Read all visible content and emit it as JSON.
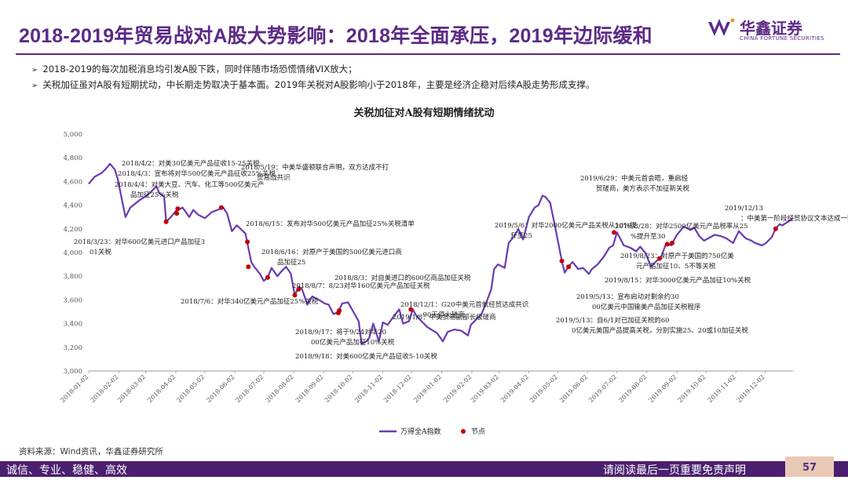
{
  "header": {
    "title": "2018-2019年贸易战对A股大势影响：2018年全面承压，2019年边际缓和",
    "logo_cn": "华鑫证券",
    "logo_en": "CHINA FORTUNE SECURITIES",
    "brand_color": "#5b2a86"
  },
  "bullets": [
    "2018-2019的每次加税消息均引发A股下跌，同时伴随市场恐慌情绪VIX放大；",
    "关税加征虽对A股有短期扰动，中长期走势取决于基本面。2019年关税对A股影响小于2018年，主要是经济企稳对后续A股走势形成支撑。"
  ],
  "chart_data": {
    "type": "line",
    "title": "关税加征对A股有短期情绪扰动",
    "ylim": [
      3000,
      5000
    ],
    "yticks": [
      "3,000",
      "3,200",
      "3,400",
      "3,600",
      "3,800",
      "4,000",
      "4,200",
      "4,400",
      "4,600",
      "4,800",
      "5,000"
    ],
    "xticks": [
      "2018-01-02",
      "2018-02-02",
      "2018-03-02",
      "2018-04-02",
      "2018-05-02",
      "2018-06-02",
      "2018-07-02",
      "2018-08-02",
      "2018-09-02",
      "2018-10-02",
      "2018-11-02",
      "2018-12-02",
      "2019-01-02",
      "2019-02-02",
      "2019-03-02",
      "2019-04-02",
      "2019-05-02",
      "2019-06-02",
      "2019-07-02",
      "2019-08-02",
      "2019-09-02",
      "2019-10-02",
      "2019-11-02",
      "2019-12-02"
    ],
    "series": [
      {
        "name": "万得全A指数",
        "color": "#6a3ab2",
        "points": [
          [
            "2018-01-02",
            4580
          ],
          [
            "2018-01-08",
            4640
          ],
          [
            "2018-01-15",
            4670
          ],
          [
            "2018-01-19",
            4700
          ],
          [
            "2018-01-24",
            4750
          ],
          [
            "2018-01-29",
            4700
          ],
          [
            "2018-02-01",
            4620
          ],
          [
            "2018-02-06",
            4420
          ],
          [
            "2018-02-09",
            4300
          ],
          [
            "2018-02-14",
            4380
          ],
          [
            "2018-02-23",
            4440
          ],
          [
            "2018-03-01",
            4470
          ],
          [
            "2018-03-07",
            4510
          ],
          [
            "2018-03-13",
            4560
          ],
          [
            "2018-03-16",
            4500
          ],
          [
            "2018-03-21",
            4470
          ],
          [
            "2018-03-23",
            4260
          ],
          [
            "2018-03-28",
            4300
          ],
          [
            "2018-04-02",
            4350
          ],
          [
            "2018-04-09",
            4380
          ],
          [
            "2018-04-16",
            4300
          ],
          [
            "2018-04-20",
            4360
          ],
          [
            "2018-04-25",
            4320
          ],
          [
            "2018-05-02",
            4290
          ],
          [
            "2018-05-09",
            4340
          ],
          [
            "2018-05-15",
            4360
          ],
          [
            "2018-05-21",
            4380
          ],
          [
            "2018-05-25",
            4330
          ],
          [
            "2018-05-30",
            4180
          ],
          [
            "2018-06-04",
            4230
          ],
          [
            "2018-06-08",
            4200
          ],
          [
            "2018-06-13",
            4160
          ],
          [
            "2018-06-19",
            3920
          ],
          [
            "2018-06-22",
            3880
          ],
          [
            "2018-06-28",
            3820
          ],
          [
            "2018-07-02",
            3760
          ],
          [
            "2018-07-06",
            3790
          ],
          [
            "2018-07-10",
            3870
          ],
          [
            "2018-07-16",
            3800
          ],
          [
            "2018-07-20",
            3840
          ],
          [
            "2018-07-25",
            3880
          ],
          [
            "2018-07-30",
            3820
          ],
          [
            "2018-08-03",
            3640
          ],
          [
            "2018-08-07",
            3710
          ],
          [
            "2018-08-10",
            3700
          ],
          [
            "2018-08-16",
            3560
          ],
          [
            "2018-08-21",
            3630
          ],
          [
            "2018-08-28",
            3600
          ],
          [
            "2018-09-03",
            3570
          ],
          [
            "2018-09-07",
            3560
          ],
          [
            "2018-09-12",
            3480
          ],
          [
            "2018-09-17",
            3500
          ],
          [
            "2018-09-21",
            3570
          ],
          [
            "2018-09-27",
            3580
          ],
          [
            "2018-10-08",
            3420
          ],
          [
            "2018-10-11",
            3230
          ],
          [
            "2018-10-16",
            3250
          ],
          [
            "2018-10-19",
            3280
          ],
          [
            "2018-10-23",
            3400
          ],
          [
            "2018-10-29",
            3250
          ],
          [
            "2018-11-02",
            3410
          ],
          [
            "2018-11-07",
            3390
          ],
          [
            "2018-11-14",
            3470
          ],
          [
            "2018-11-19",
            3520
          ],
          [
            "2018-11-23",
            3400
          ],
          [
            "2018-11-29",
            3420
          ],
          [
            "2018-12-03",
            3520
          ],
          [
            "2018-12-07",
            3460
          ],
          [
            "2018-12-12",
            3420
          ],
          [
            "2018-12-18",
            3370
          ],
          [
            "2018-12-24",
            3340
          ],
          [
            "2018-12-28",
            3320
          ],
          [
            "2019-01-03",
            3250
          ],
          [
            "2019-01-08",
            3330
          ],
          [
            "2019-01-15",
            3350
          ],
          [
            "2019-01-22",
            3340
          ],
          [
            "2019-01-29",
            3300
          ],
          [
            "2019-02-01",
            3390
          ],
          [
            "2019-02-12",
            3480
          ],
          [
            "2019-02-18",
            3600
          ],
          [
            "2019-02-22",
            3690
          ],
          [
            "2019-02-25",
            3860
          ],
          [
            "2019-03-01",
            3900
          ],
          [
            "2019-03-08",
            3870
          ],
          [
            "2019-03-12",
            4080
          ],
          [
            "2019-03-18",
            4140
          ],
          [
            "2019-03-22",
            4200
          ],
          [
            "2019-03-27",
            4110
          ],
          [
            "2019-04-02",
            4300
          ],
          [
            "2019-04-08",
            4380
          ],
          [
            "2019-04-12",
            4400
          ],
          [
            "2019-04-16",
            4480
          ],
          [
            "2019-04-19",
            4470
          ],
          [
            "2019-04-24",
            4420
          ],
          [
            "2019-04-29",
            4220
          ],
          [
            "2019-05-06",
            3930
          ],
          [
            "2019-05-09",
            3830
          ],
          [
            "2019-05-13",
            3880
          ],
          [
            "2019-05-17",
            3920
          ],
          [
            "2019-05-23",
            3860
          ],
          [
            "2019-05-28",
            3870
          ],
          [
            "2019-06-03",
            3820
          ],
          [
            "2019-06-06",
            3860
          ],
          [
            "2019-06-12",
            3900
          ],
          [
            "2019-06-18",
            3960
          ],
          [
            "2019-06-24",
            4040
          ],
          [
            "2019-06-28",
            4060
          ],
          [
            "2019-07-02",
            4170
          ],
          [
            "2019-07-09",
            4060
          ],
          [
            "2019-07-16",
            4040
          ],
          [
            "2019-07-22",
            4010
          ],
          [
            "2019-07-26",
            4050
          ],
          [
            "2019-08-01",
            3990
          ],
          [
            "2019-08-06",
            3880
          ],
          [
            "2019-08-12",
            3930
          ],
          [
            "2019-08-16",
            3950
          ],
          [
            "2019-08-22",
            4080
          ],
          [
            "2019-08-27",
            4060
          ],
          [
            "2019-09-02",
            4150
          ],
          [
            "2019-09-09",
            4220
          ],
          [
            "2019-09-16",
            4190
          ],
          [
            "2019-09-20",
            4210
          ],
          [
            "2019-09-25",
            4140
          ],
          [
            "2019-09-30",
            4100
          ],
          [
            "2019-10-11",
            4150
          ],
          [
            "2019-10-17",
            4140
          ],
          [
            "2019-10-23",
            4120
          ],
          [
            "2019-10-30",
            4080
          ],
          [
            "2019-11-05",
            4180
          ],
          [
            "2019-11-12",
            4120
          ],
          [
            "2019-11-18",
            4100
          ],
          [
            "2019-11-22",
            4080
          ],
          [
            "2019-11-29",
            4060
          ],
          [
            "2019-12-03",
            4080
          ],
          [
            "2019-12-09",
            4130
          ],
          [
            "2019-12-13",
            4200
          ],
          [
            "2019-12-17",
            4240
          ],
          [
            "2019-12-20",
            4230
          ],
          [
            "2019-12-26",
            4260
          ],
          [
            "2019-12-31",
            4290
          ]
        ]
      },
      {
        "name": "节点",
        "color": "#c00000",
        "points": [
          [
            "2018-03-23",
            4260
          ],
          [
            "2018-04-03",
            4330
          ],
          [
            "2018-04-04",
            4370
          ],
          [
            "2018-05-19",
            4380
          ],
          [
            "2018-06-15",
            4090
          ],
          [
            "2018-06-16",
            3880
          ],
          [
            "2018-07-06",
            3790
          ],
          [
            "2018-08-03",
            3640
          ],
          [
            "2018-08-07",
            3690
          ],
          [
            "2018-09-17",
            3490
          ],
          [
            "2018-09-18",
            3510
          ],
          [
            "2018-12-01",
            3520
          ],
          [
            "2019-05-06",
            3930
          ],
          [
            "2019-05-13",
            3880
          ],
          [
            "2019-06-29",
            4170
          ],
          [
            "2019-08-15",
            3950
          ],
          [
            "2019-08-23",
            4070
          ],
          [
            "2019-08-28",
            4080
          ],
          [
            "2019-12-13",
            4200
          ]
        ]
      }
    ],
    "annotations": [
      "2018/4/2：对美30亿美元产品征收15-25关税",
      "2018/4/3：宣布将对华500亿美元产品征收25%关税",
      "2018/4/4：对美大豆、汽车、化工等500亿美元产品加征25%关税",
      "2018/3/23：对华600亿美元进口产品加征301关税",
      "2018/5/19：中美华盛顿联合声明，双方达成不打贸易战共识",
      "2018/6/15：发布对华500亿美元产品加征25%关税清单",
      "2018/6/16：对原产于美国的500亿美元进口商品加征25",
      "2018/7/6：对华340亿美元产品加征25%关税",
      "2018/8/3：对自美进口的600亿商品加征关税",
      "2018/8/7：8/23对华160亿美元产品加征关税",
      "2018/9/17：将于9/24对华2000亿美元产品加征10%关税",
      "2018/9/18：对美600亿美元产品征收5-10关税",
      "2018/12/1：G20中美元首就经贸达成共识，90天停火磋商",
      "2019/1/8：中美贸易副部长级磋商",
      "2019/5/6：对华2000亿美元产品关税从10%提升至25",
      "2019/5/13：宣布启动对剩余约3000亿美元中国输美产品加征关税程序",
      "2019/5/13：自6/1对已加征关税的600亿美元美国产品提高关税，分别实施25、20或10加征关税",
      "2019/6/29：中美元首会晤，重启经贸磋商，美方表示不加征新关税",
      "2019/8/28：对华2500亿美元产品税率从25%提升至30",
      "2019/8/23：对原产于美国的750亿美元产品加征10、5不等关税",
      "2019/8/15：对华3000亿美元产品加征10%关税",
      "2019/12/13：中美第一阶段经贸协议文本达成一致"
    ],
    "grid": false,
    "legend_position": "bottom-center"
  },
  "source": "资料来源：Wind资讯，华鑫证券研究所",
  "footer": {
    "left": "诚信、专业、稳健、高效",
    "right": "请阅读最后一页重要免责声明",
    "page": "57"
  }
}
